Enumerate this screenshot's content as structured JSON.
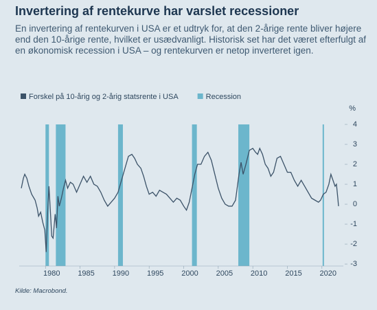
{
  "chart_data": {
    "type": "line",
    "title": "Invertering af rentekurve har varslet recessioner",
    "subtitle": "En invertering af rentekurven i USA er et udtryk for, at den 2-årige rente bliver højere end den 10-årige rente, hvilket er usædvanligt. Historisk set har det været efterfulgt af en økonomisk recession i USA – og rentekurven er netop inverteret igen.",
    "y_label": "%",
    "source": "Kilde: Macrobond.",
    "xlim": [
      1976.2,
      2023.1
    ],
    "xticks": [
      1980,
      1985,
      1990,
      1995,
      2000,
      2005,
      2010,
      2015,
      2020
    ],
    "ylim": [
      -3.1,
      4.0
    ],
    "yticks": [
      -3,
      -2,
      -1,
      0,
      1,
      2,
      3,
      4
    ],
    "series": [
      {
        "name": "Forskel på 10-årig og 2-årig statsrente i USA",
        "color": "#3b5268",
        "x": [
          1976.5,
          1976.8,
          1977.0,
          1977.3,
          1977.6,
          1978.0,
          1978.5,
          1978.8,
          1979.0,
          1979.3,
          1979.6,
          1979.9,
          1980.1,
          1980.3,
          1980.5,
          1980.7,
          1980.9,
          1981.1,
          1981.4,
          1981.6,
          1981.8,
          1982.0,
          1982.3,
          1982.6,
          1982.9,
          1983.2,
          1983.6,
          1984.0,
          1984.5,
          1985.0,
          1985.5,
          1986.0,
          1986.5,
          1987.0,
          1987.5,
          1988.0,
          1988.5,
          1989.0,
          1989.5,
          1990.0,
          1990.5,
          1991.0,
          1991.5,
          1992.0,
          1992.5,
          1992.9,
          1993.3,
          1993.8,
          1994.2,
          1994.6,
          1995.0,
          1995.5,
          1996.0,
          1996.5,
          1997.0,
          1997.5,
          1998.0,
          1998.5,
          1999.0,
          1999.5,
          2000.0,
          2000.4,
          2000.8,
          2001.2,
          2001.6,
          2002.0,
          2002.5,
          2003.0,
          2003.5,
          2004.0,
          2004.5,
          2005.0,
          2005.5,
          2006.0,
          2006.5,
          2007.0,
          2007.5,
          2008.0,
          2008.3,
          2008.6,
          2009.0,
          2009.5,
          2010.0,
          2010.4,
          2010.7,
          2011.0,
          2011.4,
          2011.8,
          2012.2,
          2012.6,
          2013.0,
          2013.5,
          2014.0,
          2014.5,
          2015.0,
          2015.5,
          2016.0,
          2016.5,
          2017.0,
          2017.5,
          2018.0,
          2018.5,
          2019.0,
          2019.5,
          2019.8,
          2020.2,
          2020.6,
          2021.0,
          2021.3,
          2021.6,
          2021.9,
          2022.1,
          2022.3,
          2022.4
        ],
        "values": [
          0.8,
          1.3,
          1.5,
          1.3,
          0.9,
          0.5,
          0.2,
          -0.2,
          -0.6,
          -0.4,
          -0.9,
          -1.3,
          -2.4,
          -0.5,
          0.9,
          -0.3,
          -1.6,
          -1.7,
          -0.5,
          -1.2,
          0.4,
          -0.1,
          0.3,
          0.8,
          1.2,
          0.8,
          1.1,
          1.0,
          0.6,
          1.0,
          1.4,
          1.1,
          1.4,
          1.0,
          0.9,
          0.6,
          0.2,
          -0.1,
          0.1,
          0.3,
          0.6,
          1.2,
          1.8,
          2.4,
          2.5,
          2.3,
          2.0,
          1.8,
          1.4,
          0.9,
          0.5,
          0.6,
          0.4,
          0.7,
          0.6,
          0.5,
          0.3,
          0.1,
          0.3,
          0.2,
          -0.1,
          -0.3,
          0.1,
          0.8,
          1.5,
          2.0,
          2.0,
          2.4,
          2.6,
          2.2,
          1.5,
          0.8,
          0.3,
          0.0,
          -0.1,
          -0.1,
          0.2,
          1.5,
          2.1,
          1.5,
          2.0,
          2.7,
          2.8,
          2.6,
          2.5,
          2.8,
          2.5,
          2.0,
          1.8,
          1.4,
          1.6,
          2.3,
          2.4,
          2.0,
          1.6,
          1.6,
          1.2,
          0.9,
          1.2,
          0.9,
          0.6,
          0.3,
          0.2,
          0.1,
          0.2,
          0.5,
          0.6,
          1.0,
          1.5,
          1.2,
          0.9,
          1.0,
          0.3,
          -0.1
        ]
      },
      {
        "name": "Recession",
        "type": "band",
        "color": "#6cb6cc",
        "periods": [
          [
            1980.0,
            1980.5
          ],
          [
            1981.5,
            1982.9
          ],
          [
            1990.5,
            1991.2
          ],
          [
            2001.2,
            2001.9
          ],
          [
            2007.9,
            2009.5
          ],
          [
            2020.1,
            2020.3
          ]
        ]
      }
    ]
  }
}
